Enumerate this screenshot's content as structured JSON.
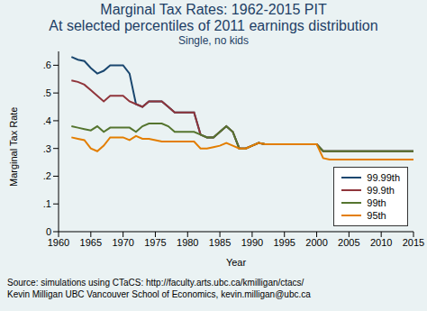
{
  "chart_data": {
    "type": "line",
    "title": [
      "Marginal Tax Rates: 1962-2015 PIT",
      "At selected percentiles of 2011 earnings distribution"
    ],
    "subtitle": "Single, no kids",
    "note": [
      "Source: simulations using CTaCS: http://faculty.arts.ubc.ca/kmilligan/ctacs/",
      "Kevin Milligan UBC Vancouver School of Economics, kevin.milligan@ubc.ca"
    ],
    "x_label": "Year",
    "y_label": "Marginal Tax Rate",
    "x": [
      1962,
      1963,
      1964,
      1965,
      1966,
      1967,
      1968,
      1969,
      1970,
      1971,
      1972,
      1973,
      1974,
      1975,
      1976,
      1977,
      1978,
      1979,
      1980,
      1981,
      1982,
      1983,
      1984,
      1985,
      1986,
      1987,
      1988,
      1989,
      1990,
      1991,
      1992,
      1993,
      1994,
      1995,
      1996,
      1997,
      1998,
      1999,
      2000,
      2001,
      2002,
      2003,
      2004,
      2005,
      2006,
      2007,
      2008,
      2009,
      2010,
      2011,
      2012,
      2013,
      2014,
      2015
    ],
    "xlim": [
      1960,
      2015
    ],
    "xticks": [
      1960,
      1965,
      1970,
      1975,
      1980,
      1985,
      1990,
      1995,
      2000,
      2005,
      2010,
      2015
    ],
    "ylim": [
      0,
      0.65
    ],
    "yticks": [
      0,
      {
        "value": 0.1,
        "label": ".1"
      },
      {
        "value": 0.2,
        "label": ".2"
      },
      {
        "value": 0.3,
        "label": ".3"
      },
      {
        "value": 0.4,
        "label": ".4"
      },
      {
        "value": 0.5,
        "label": ".5"
      },
      {
        "value": 0.6,
        "label": ".6"
      }
    ],
    "grid": false,
    "legend": "lower right",
    "series": [
      {
        "name": "99.99th",
        "color": "#1a476f",
        "values": [
          0.63,
          0.62,
          0.615,
          0.59,
          0.57,
          0.58,
          0.6,
          0.6,
          0.6,
          0.57,
          0.46,
          0.45,
          0.47,
          0.47,
          0.47,
          0.45,
          0.43,
          0.43,
          0.43,
          0.43,
          0.35,
          0.34,
          0.34,
          0.36,
          0.38,
          0.36,
          0.3,
          0.3,
          0.31,
          0.32,
          0.315,
          0.315,
          0.315,
          0.315,
          0.315,
          0.315,
          0.315,
          0.315,
          0.315,
          0.29,
          0.29,
          0.29,
          0.29,
          0.29,
          0.29,
          0.29,
          0.29,
          0.29,
          0.29,
          0.29,
          0.29,
          0.29,
          0.29,
          0.29
        ]
      },
      {
        "name": "99.9th",
        "color": "#90353b",
        "values": [
          0.545,
          0.54,
          0.53,
          0.51,
          0.49,
          0.47,
          0.49,
          0.49,
          0.49,
          0.47,
          0.46,
          0.45,
          0.47,
          0.47,
          0.47,
          0.45,
          0.43,
          0.43,
          0.43,
          0.43,
          0.35,
          0.34,
          0.34,
          0.36,
          0.38,
          0.36,
          0.3,
          0.3,
          0.31,
          0.32,
          0.315,
          0.315,
          0.315,
          0.315,
          0.315,
          0.315,
          0.315,
          0.315,
          0.315,
          0.29,
          0.29,
          0.29,
          0.29,
          0.29,
          0.29,
          0.29,
          0.29,
          0.29,
          0.29,
          0.29,
          0.29,
          0.29,
          0.29,
          0.29
        ]
      },
      {
        "name": "99th",
        "color": "#55752f",
        "values": [
          0.38,
          0.375,
          0.37,
          0.365,
          0.38,
          0.36,
          0.375,
          0.375,
          0.375,
          0.375,
          0.36,
          0.38,
          0.39,
          0.39,
          0.39,
          0.38,
          0.36,
          0.36,
          0.36,
          0.36,
          0.35,
          0.34,
          0.34,
          0.36,
          0.38,
          0.36,
          0.3,
          0.3,
          0.31,
          0.32,
          0.315,
          0.315,
          0.315,
          0.315,
          0.315,
          0.315,
          0.315,
          0.315,
          0.315,
          0.29,
          0.29,
          0.29,
          0.29,
          0.29,
          0.29,
          0.29,
          0.29,
          0.29,
          0.29,
          0.29,
          0.29,
          0.29,
          0.29,
          0.29
        ]
      },
      {
        "name": "95th",
        "color": "#e37e00",
        "values": [
          0.34,
          0.335,
          0.33,
          0.3,
          0.29,
          0.31,
          0.34,
          0.34,
          0.34,
          0.33,
          0.345,
          0.335,
          0.335,
          0.33,
          0.325,
          0.325,
          0.325,
          0.325,
          0.325,
          0.325,
          0.3,
          0.3,
          0.305,
          0.31,
          0.32,
          0.31,
          0.3,
          0.3,
          0.31,
          0.32,
          0.315,
          0.315,
          0.315,
          0.315,
          0.315,
          0.315,
          0.315,
          0.315,
          0.315,
          0.265,
          0.26,
          0.26,
          0.26,
          0.26,
          0.26,
          0.26,
          0.26,
          0.26,
          0.26,
          0.26,
          0.26,
          0.26,
          0.26,
          0.26
        ]
      }
    ]
  }
}
